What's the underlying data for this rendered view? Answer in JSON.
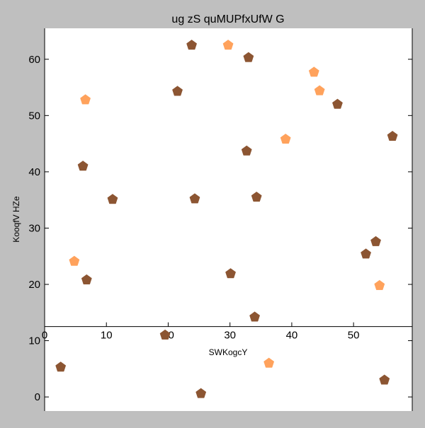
{
  "chart_data": {
    "type": "scatter",
    "title": "ug zS quMUPfxUfW G",
    "xlabel": "SWKogcY",
    "ylabel": "KooqfV  HZe",
    "xlim": [
      0,
      59.5
    ],
    "ylim": [
      -2.5,
      65.5
    ],
    "x_ticks": [
      0,
      10,
      20,
      30,
      40,
      50
    ],
    "y_ticks": [
      0,
      10,
      20,
      30,
      40,
      50,
      60
    ],
    "x_axis_position_y": 12.5,
    "grid": false,
    "legend": "none",
    "marker": "pentagon",
    "series": [
      {
        "color": "#8c5532",
        "points": [
          [
            2.6,
            5.3
          ],
          [
            6.2,
            41.0
          ],
          [
            6.8,
            20.8
          ],
          [
            11.0,
            35.1
          ],
          [
            19.5,
            11.0
          ],
          [
            21.5,
            54.3
          ],
          [
            23.8,
            62.5
          ],
          [
            24.3,
            35.2
          ],
          [
            25.3,
            0.6
          ],
          [
            30.1,
            21.9
          ],
          [
            32.7,
            43.7
          ],
          [
            33.0,
            60.3
          ],
          [
            34.0,
            14.2
          ],
          [
            34.3,
            35.5
          ],
          [
            47.4,
            52.0
          ],
          [
            52.0,
            25.4
          ],
          [
            53.6,
            27.6
          ],
          [
            55.0,
            3.0
          ],
          [
            56.3,
            46.3
          ]
        ]
      },
      {
        "color": "#ffa25c",
        "points": [
          [
            4.8,
            24.1
          ],
          [
            6.6,
            52.8
          ],
          [
            29.7,
            62.5
          ],
          [
            36.3,
            6.0
          ],
          [
            39.0,
            45.8
          ],
          [
            43.6,
            57.7
          ],
          [
            44.5,
            54.4
          ],
          [
            54.2,
            19.8
          ]
        ]
      }
    ]
  }
}
